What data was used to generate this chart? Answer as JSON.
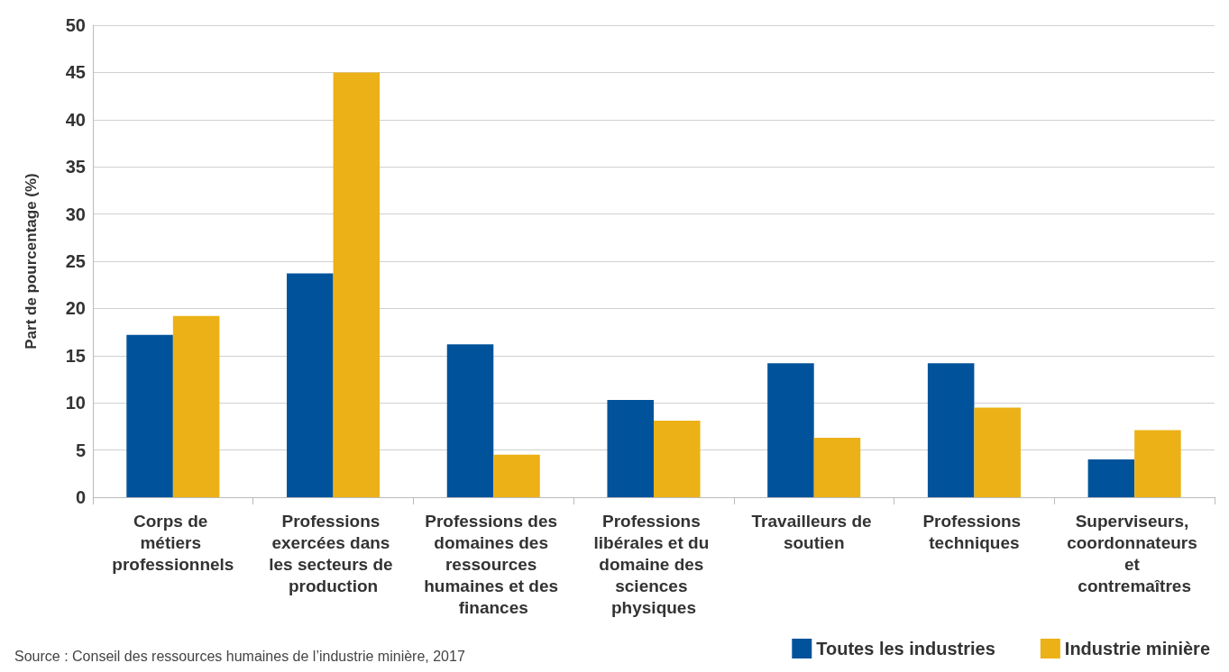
{
  "chart_data": {
    "type": "bar",
    "ylabel": "Part de pourcentage (%)",
    "categories": [
      "Corps de métiers professionnels",
      "Professions exercées dans les secteurs de production",
      "Professions des domaines des ressources humaines et des finances",
      "Professions libérales et du domaine des sciences physiques",
      "Travailleurs de soutien",
      "Professions techniques",
      "Superviseurs, coordonnateurs et contremaîtres"
    ],
    "series": [
      {
        "name": "Toutes les industries",
        "color": "#00539b",
        "values": [
          17.2,
          23.7,
          16.2,
          10.3,
          14.2,
          14.2,
          4.0
        ]
      },
      {
        "name": "Industrie minière",
        "color": "#ecb116",
        "values": [
          19.2,
          45,
          4.5,
          8.1,
          6.3,
          9.5,
          7.1
        ]
      }
    ],
    "ylim": [
      0,
      50
    ],
    "yticks": [
      0,
      5,
      10,
      15,
      20,
      25,
      30,
      35,
      40,
      45,
      50
    ],
    "grid": "y",
    "legend": "bottom right",
    "annotations": [
      "Source : Conseil des ressources humaines de l’industrie minière, 2017"
    ]
  }
}
